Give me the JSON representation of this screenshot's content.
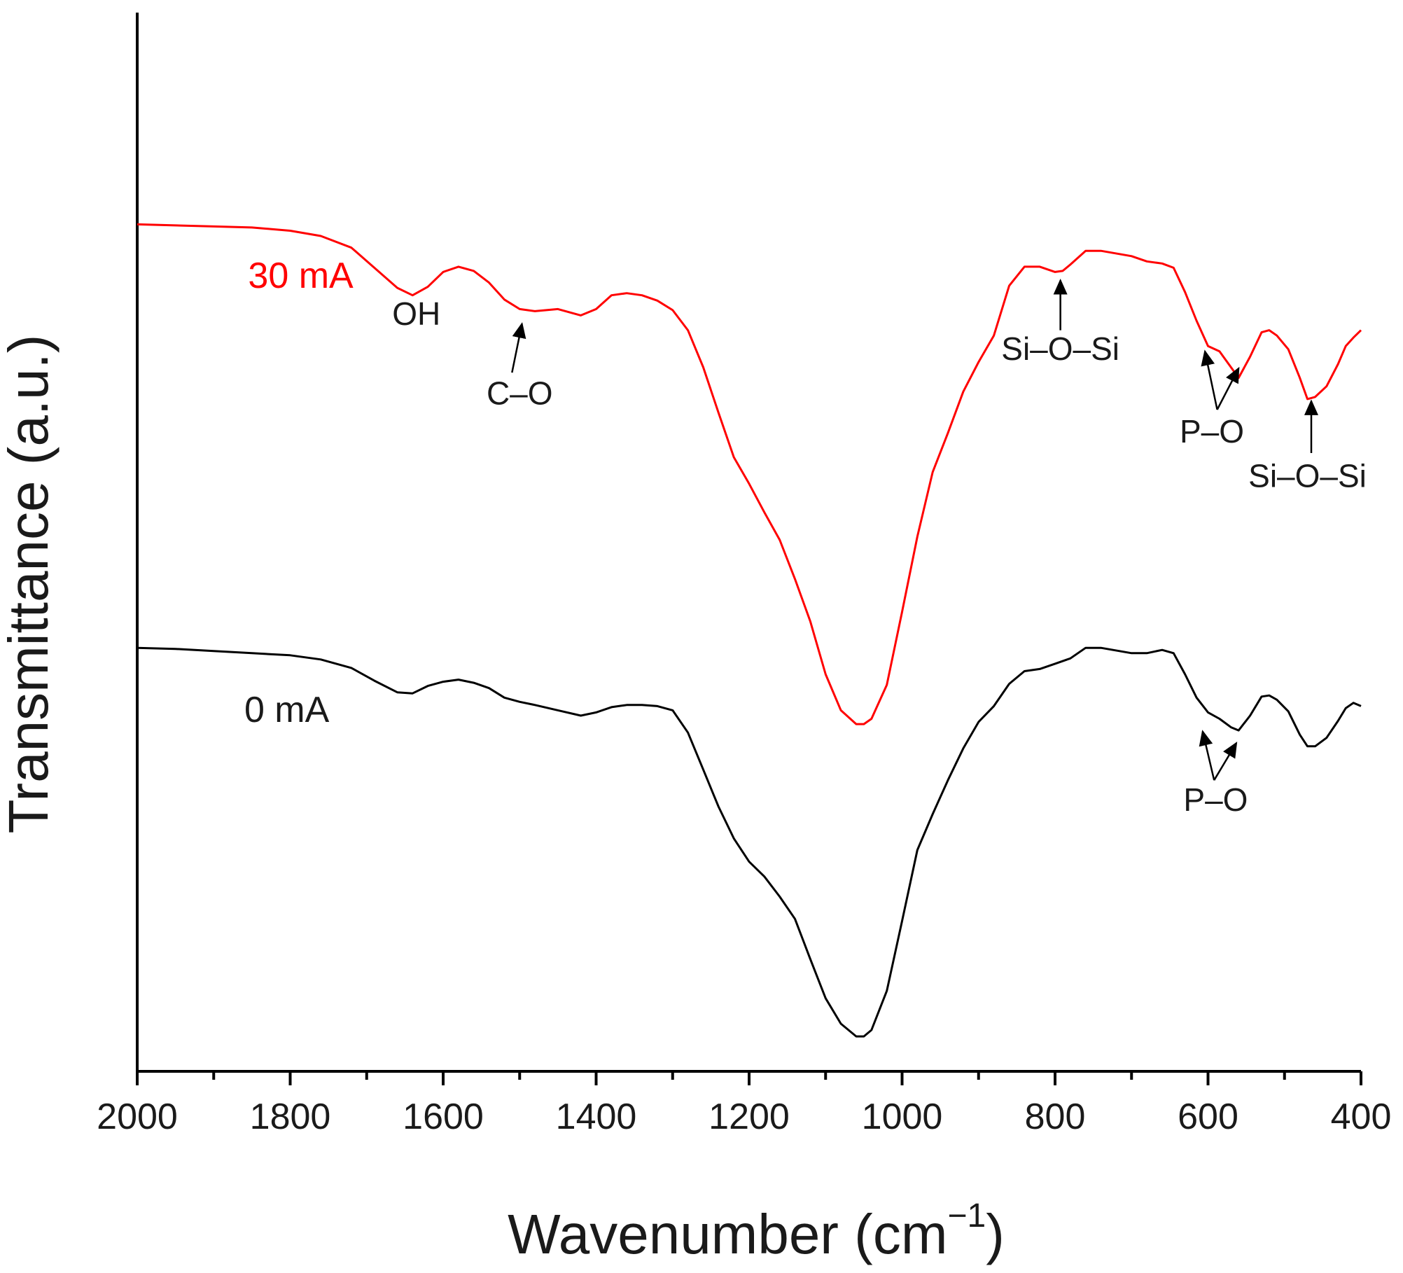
{
  "chart_data": {
    "type": "line",
    "title": "",
    "xlabel": "Wavenumber (cm",
    "xlabel_sup": "−1",
    "xlabel_close": ")",
    "ylabel": "Transmittance (a.u.)",
    "xlim": [
      2000,
      400
    ],
    "ylim": [
      0,
      100
    ],
    "x_ticks": [
      2000,
      1800,
      1600,
      1400,
      1200,
      1000,
      800,
      600,
      400
    ],
    "x_tick_labels": [
      "2000",
      "1800",
      "1600",
      "1400",
      "1200",
      "1000",
      "800",
      "600",
      "400"
    ],
    "y_ticks_shown": false,
    "grid": false,
    "series": [
      {
        "name": "30 mA",
        "color": "#ff0000",
        "points": [
          [
            2000,
            80.0
          ],
          [
            1950,
            79.9
          ],
          [
            1900,
            79.8
          ],
          [
            1850,
            79.7
          ],
          [
            1800,
            79.4
          ],
          [
            1760,
            78.9
          ],
          [
            1720,
            77.8
          ],
          [
            1690,
            75.9
          ],
          [
            1660,
            74.0
          ],
          [
            1640,
            73.3
          ],
          [
            1620,
            74.1
          ],
          [
            1600,
            75.5
          ],
          [
            1580,
            76.0
          ],
          [
            1560,
            75.6
          ],
          [
            1540,
            74.5
          ],
          [
            1520,
            72.9
          ],
          [
            1500,
            72.0
          ],
          [
            1480,
            71.8
          ],
          [
            1450,
            72.0
          ],
          [
            1420,
            71.4
          ],
          [
            1400,
            72.0
          ],
          [
            1380,
            73.3
          ],
          [
            1360,
            73.5
          ],
          [
            1340,
            73.3
          ],
          [
            1320,
            72.8
          ],
          [
            1300,
            71.9
          ],
          [
            1280,
            70.0
          ],
          [
            1260,
            66.5
          ],
          [
            1240,
            62.2
          ],
          [
            1220,
            58.0
          ],
          [
            1200,
            55.5
          ],
          [
            1180,
            52.8
          ],
          [
            1160,
            50.2
          ],
          [
            1140,
            46.5
          ],
          [
            1120,
            42.5
          ],
          [
            1100,
            37.5
          ],
          [
            1080,
            34.1
          ],
          [
            1060,
            32.8
          ],
          [
            1050,
            32.8
          ],
          [
            1040,
            33.3
          ],
          [
            1020,
            36.5
          ],
          [
            1000,
            43.4
          ],
          [
            980,
            50.5
          ],
          [
            960,
            56.6
          ],
          [
            940,
            60.3
          ],
          [
            920,
            64.2
          ],
          [
            900,
            67.0
          ],
          [
            880,
            69.5
          ],
          [
            860,
            74.2
          ],
          [
            840,
            76.0
          ],
          [
            820,
            76.0
          ],
          [
            800,
            75.5
          ],
          [
            790,
            75.6
          ],
          [
            780,
            76.2
          ],
          [
            760,
            77.5
          ],
          [
            740,
            77.5
          ],
          [
            700,
            77.0
          ],
          [
            680,
            76.5
          ],
          [
            660,
            76.3
          ],
          [
            645,
            75.9
          ],
          [
            630,
            73.6
          ],
          [
            615,
            70.9
          ],
          [
            600,
            68.5
          ],
          [
            585,
            68.0
          ],
          [
            570,
            66.5
          ],
          [
            560,
            65.5
          ],
          [
            545,
            67.5
          ],
          [
            530,
            69.8
          ],
          [
            520,
            70.0
          ],
          [
            510,
            69.5
          ],
          [
            495,
            68.2
          ],
          [
            480,
            65.5
          ],
          [
            470,
            63.5
          ],
          [
            460,
            63.7
          ],
          [
            445,
            64.7
          ],
          [
            430,
            66.8
          ],
          [
            420,
            68.5
          ],
          [
            410,
            69.3
          ],
          [
            400,
            70.0
          ]
        ]
      },
      {
        "name": "0 mA",
        "color": "#000000",
        "points": [
          [
            2000,
            40.0
          ],
          [
            1950,
            39.9
          ],
          [
            1900,
            39.7
          ],
          [
            1850,
            39.5
          ],
          [
            1800,
            39.3
          ],
          [
            1760,
            38.9
          ],
          [
            1720,
            38.1
          ],
          [
            1690,
            36.9
          ],
          [
            1660,
            35.8
          ],
          [
            1640,
            35.7
          ],
          [
            1620,
            36.4
          ],
          [
            1600,
            36.8
          ],
          [
            1580,
            37.0
          ],
          [
            1560,
            36.7
          ],
          [
            1540,
            36.2
          ],
          [
            1520,
            35.3
          ],
          [
            1500,
            34.9
          ],
          [
            1480,
            34.6
          ],
          [
            1450,
            34.1
          ],
          [
            1420,
            33.6
          ],
          [
            1400,
            33.9
          ],
          [
            1380,
            34.4
          ],
          [
            1360,
            34.6
          ],
          [
            1340,
            34.6
          ],
          [
            1320,
            34.5
          ],
          [
            1300,
            34.1
          ],
          [
            1280,
            32.0
          ],
          [
            1260,
            28.5
          ],
          [
            1240,
            25.0
          ],
          [
            1220,
            22.0
          ],
          [
            1200,
            19.8
          ],
          [
            1180,
            18.4
          ],
          [
            1160,
            16.5
          ],
          [
            1140,
            14.4
          ],
          [
            1120,
            10.6
          ],
          [
            1100,
            6.9
          ],
          [
            1080,
            4.5
          ],
          [
            1060,
            3.3
          ],
          [
            1050,
            3.3
          ],
          [
            1040,
            3.9
          ],
          [
            1020,
            7.6
          ],
          [
            1000,
            14.2
          ],
          [
            980,
            20.9
          ],
          [
            960,
            24.3
          ],
          [
            940,
            27.5
          ],
          [
            920,
            30.5
          ],
          [
            900,
            33.0
          ],
          [
            880,
            34.5
          ],
          [
            860,
            36.6
          ],
          [
            840,
            37.8
          ],
          [
            820,
            38.0
          ],
          [
            800,
            38.5
          ],
          [
            780,
            39.0
          ],
          [
            760,
            40.0
          ],
          [
            740,
            40.0
          ],
          [
            700,
            39.5
          ],
          [
            680,
            39.5
          ],
          [
            660,
            39.8
          ],
          [
            645,
            39.5
          ],
          [
            630,
            37.5
          ],
          [
            615,
            35.3
          ],
          [
            600,
            33.9
          ],
          [
            585,
            33.3
          ],
          [
            570,
            32.5
          ],
          [
            560,
            32.2
          ],
          [
            545,
            33.6
          ],
          [
            530,
            35.4
          ],
          [
            520,
            35.5
          ],
          [
            510,
            35.1
          ],
          [
            495,
            34.0
          ],
          [
            480,
            31.8
          ],
          [
            470,
            30.7
          ],
          [
            460,
            30.7
          ],
          [
            445,
            31.5
          ],
          [
            430,
            33.1
          ],
          [
            420,
            34.3
          ],
          [
            410,
            34.8
          ],
          [
            400,
            34.5
          ]
        ]
      }
    ],
    "series_labels": [
      {
        "text": "30 mA",
        "color": "#ff0000",
        "x": 1855,
        "y": 74.0
      },
      {
        "text": "0 mA",
        "color": "#1a1a1a",
        "x": 1860,
        "y": 33.0
      }
    ],
    "annotations": [
      {
        "text": "OH",
        "x": 1635,
        "y": 70.5,
        "arrows": []
      },
      {
        "text": "C–O",
        "x": 1500,
        "y": 63.0,
        "arrows": [
          {
            "from": [
              1510,
              66.0
            ],
            "to": [
              1497,
              70.6
            ]
          }
        ]
      },
      {
        "text": "Si–O–Si",
        "x": 793,
        "y": 67.2,
        "arrows": [
          {
            "from": [
              793,
              70.0
            ],
            "to": [
              793,
              74.7
            ]
          }
        ]
      },
      {
        "text": "P–O",
        "x": 595,
        "y": 59.4,
        "arrows": [
          {
            "from": [
              588,
              62.5
            ],
            "to": [
              604,
              68.0
            ]
          },
          {
            "from": [
              588,
              62.5
            ],
            "to": [
              560,
              66.4
            ]
          }
        ]
      },
      {
        "text": "Si–O–Si",
        "x": 470,
        "y": 55.2,
        "arrows": [
          {
            "from": [
              465,
              58.4
            ],
            "to": [
              465,
              63.3
            ]
          }
        ]
      },
      {
        "text": "P–O",
        "x": 590,
        "y": 24.6,
        "arrows": [
          {
            "from": [
              592,
              27.5
            ],
            "to": [
              607,
              32.1
            ]
          },
          {
            "from": [
              592,
              27.5
            ],
            "to": [
              563,
              31.0
            ]
          }
        ]
      }
    ]
  }
}
